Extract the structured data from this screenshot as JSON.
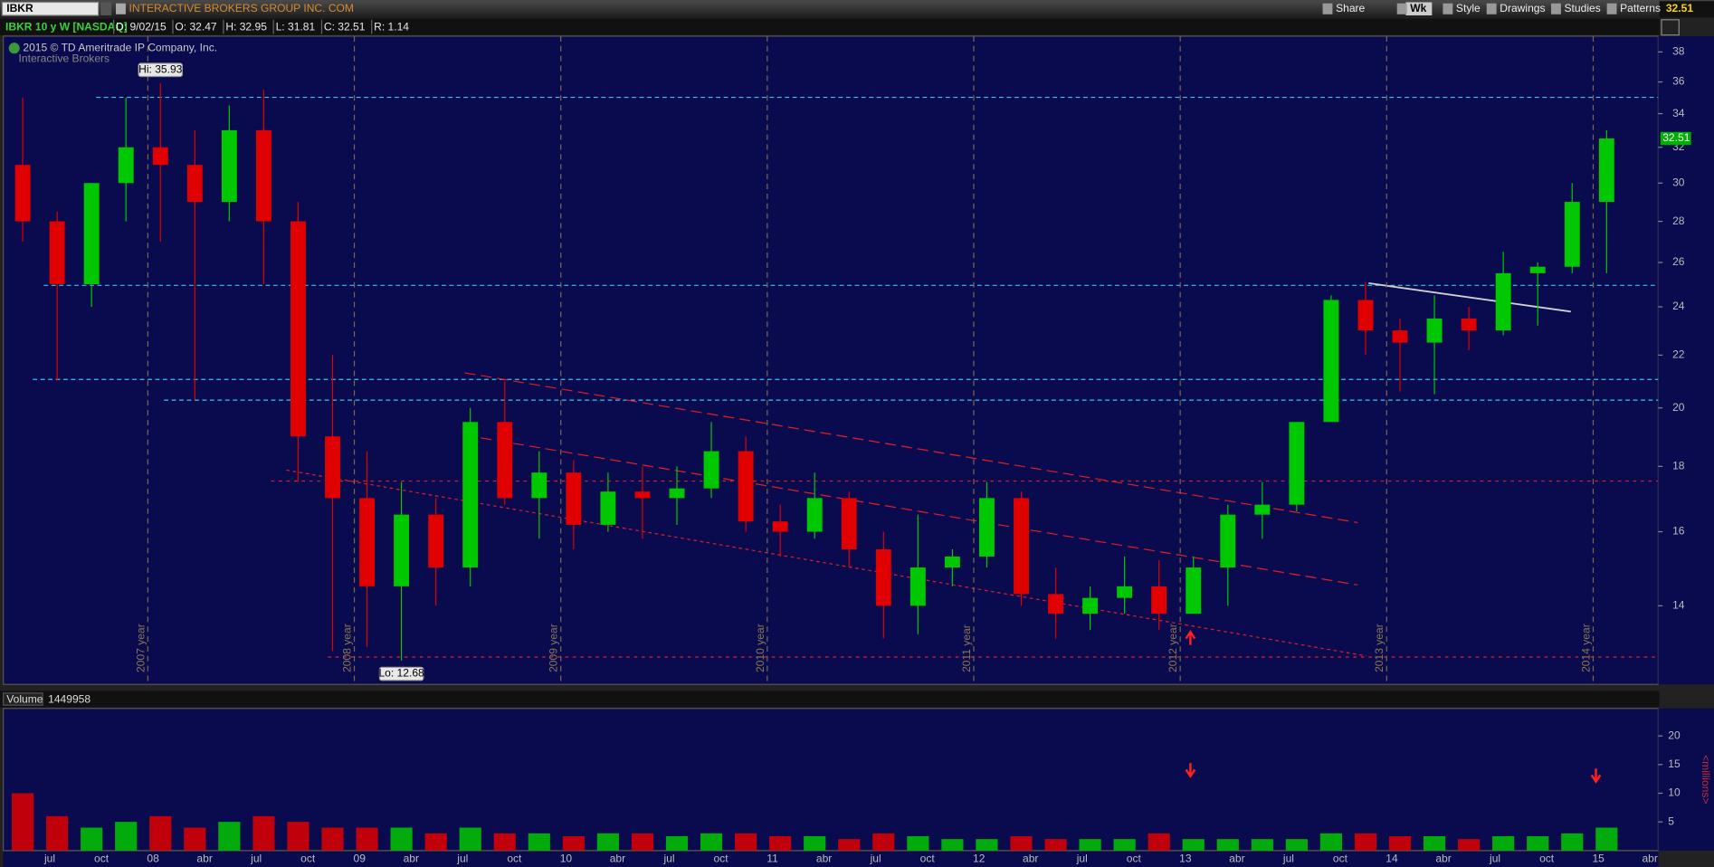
{
  "header": {
    "symbol": "IBKR",
    "company": "INTERACTIVE BROKERS GROUP INC. COM",
    "toolbar": [
      "Share",
      "Wk",
      "Style",
      "Drawings",
      "Studies",
      "Patterns"
    ],
    "last": "32.51",
    "study": "IBKR 10 y W [NASDAQ]",
    "quote": [
      "D: 9/02/15",
      "O: 32.47",
      "H: 32.95",
      "L: 31.81",
      "C: 32.51",
      "R: 1.14"
    ],
    "copyright": "2015 © TD Ameritrade IP Company, Inc.",
    "logo": "Interactive Brokers"
  },
  "chart_data": [
    {
      "type": "candlestick",
      "log": true,
      "up_color": "#00c800",
      "down_color": "#e00000",
      "open": [
        31,
        28,
        25,
        30,
        32,
        31,
        29,
        33,
        28,
        19,
        17,
        14.5,
        16.5,
        15,
        19.5,
        17,
        17.8,
        16.2,
        17.2,
        17,
        17.3,
        18.5,
        16.3,
        16,
        17,
        15.5,
        14,
        15,
        15.3,
        17,
        14.3,
        13.8,
        14.2,
        14.5,
        13.8,
        15,
        16.5,
        16.8,
        19.5,
        24.3,
        23,
        22.5,
        23.5,
        23,
        25.5,
        25.8,
        29
      ],
      "high": [
        35,
        28.5,
        30,
        35,
        35.93,
        33,
        34.5,
        35.5,
        29,
        22,
        18.5,
        17.5,
        17,
        20,
        21,
        18.5,
        18.2,
        17.8,
        18,
        18,
        19.5,
        19,
        16.8,
        17.8,
        17.2,
        16,
        16.5,
        15.5,
        17.5,
        17.2,
        15,
        14.5,
        15.3,
        15.2,
        15.3,
        16.8,
        17.5,
        19.5,
        24.5,
        25.1,
        23.5,
        24.5,
        24,
        26.5,
        26,
        30,
        33
      ],
      "low": [
        27,
        21,
        24,
        28,
        27,
        20.3,
        28,
        25,
        17.5,
        12.9,
        13,
        12.68,
        14,
        14.5,
        16.8,
        15.8,
        15.5,
        16,
        15.8,
        16.2,
        17,
        16,
        15.3,
        15.8,
        15,
        13.2,
        13.3,
        14.5,
        15,
        14,
        13.2,
        13.4,
        13.8,
        13.4,
        13.8,
        14,
        15.8,
        16.6,
        19.5,
        22,
        20.6,
        20.5,
        22.2,
        22.8,
        23.2,
        25.5,
        25.5
      ],
      "close": [
        28,
        25,
        30,
        32,
        31,
        29,
        33,
        28,
        19,
        17,
        14.5,
        16.5,
        15,
        19.5,
        17,
        17.8,
        16.2,
        17.2,
        17,
        17.3,
        18.5,
        16.3,
        16,
        17,
        15.5,
        14,
        15,
        15.3,
        17,
        14.3,
        13.8,
        14.2,
        14.5,
        13.8,
        15,
        16.5,
        16.8,
        19.5,
        24.3,
        23,
        22.5,
        23.5,
        23,
        25.5,
        25.8,
        29,
        32.51
      ],
      "ylim": [
        12.15,
        39.1
      ],
      "yticks": [
        14,
        16,
        18,
        20,
        22,
        24,
        26,
        28,
        30,
        32,
        34,
        36,
        38
      ],
      "annotations": [
        "Hi: 35.93",
        "Lo: 12.68"
      ],
      "year_labels": [
        "2007 year",
        "2008 year",
        "2009 year",
        "2010 year",
        "2011 year",
        "2012 year",
        "2013 year",
        "2014 year"
      ]
    },
    {
      "type": "bar",
      "title": "Volume",
      "last_value": "1449958",
      "y_label": "<millions>",
      "values": [
        10,
        6,
        4,
        5,
        6,
        4,
        5,
        6,
        5,
        4,
        4,
        4,
        3,
        4,
        3,
        3,
        2.5,
        3,
        3,
        2.5,
        3,
        3,
        2.5,
        2.5,
        2,
        3,
        2.5,
        2,
        2,
        2.5,
        2,
        2,
        2,
        3,
        2,
        2,
        2,
        2,
        3,
        3,
        2.5,
        2.5,
        2,
        2.5,
        2.5,
        3,
        4
      ],
      "ylim": [
        0,
        24.8
      ],
      "yticks": [
        5,
        10,
        15,
        20
      ],
      "x_labels": [
        "jul",
        "oct",
        "08",
        "abr",
        "jul",
        "oct",
        "09",
        "abr",
        "jul",
        "oct",
        "10",
        "abr",
        "jul",
        "oct",
        "11",
        "abr",
        "jul",
        "oct",
        "12",
        "abr",
        "jul",
        "oct",
        "13",
        "abr",
        "jul",
        "oct",
        "14",
        "abr",
        "jul",
        "oct",
        "15",
        "abr"
      ]
    }
  ]
}
